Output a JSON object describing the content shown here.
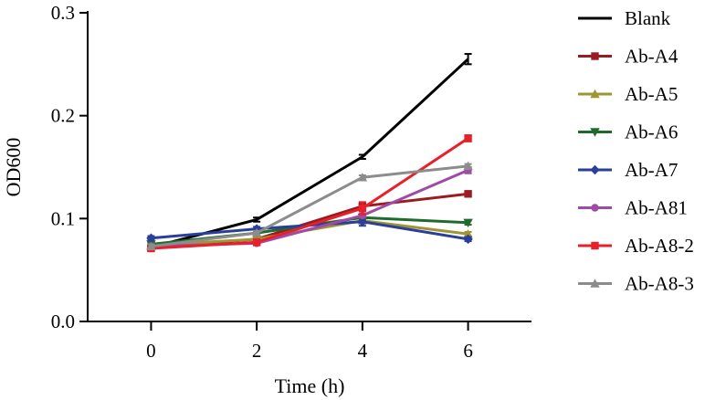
{
  "chart_data": {
    "type": "line",
    "title": "",
    "xlabel": "Time (h)",
    "ylabel": "OD600",
    "x": [
      0,
      2,
      4,
      6
    ],
    "xticks": [
      "0",
      "2",
      "4",
      "6"
    ],
    "yticks": [
      "0.0",
      "0.1",
      "0.2",
      "0.3"
    ],
    "xlim": [
      -1.2,
      7.2
    ],
    "ylim": [
      0,
      0.3
    ],
    "legend_position": "right",
    "series": [
      {
        "name": "Blank",
        "color": "#000000",
        "marker": "none",
        "values": [
          0.072,
          0.099,
          0.16,
          0.255
        ],
        "errors": [
          0.002,
          0.002,
          0.002,
          0.005
        ]
      },
      {
        "name": "Ab-A4",
        "color": "#9b1c20",
        "marker": "square",
        "values": [
          0.072,
          0.08,
          0.112,
          0.124
        ],
        "errors": [
          0.002,
          0.002,
          0.002,
          0.002
        ]
      },
      {
        "name": "Ab-A5",
        "color": "#9e9632",
        "marker": "triangle",
        "values": [
          0.074,
          0.08,
          0.098,
          0.085
        ],
        "errors": [
          0.002,
          0.002,
          0.002,
          0.002
        ]
      },
      {
        "name": "Ab-A6",
        "color": "#1f6b2d",
        "marker": "tri-down",
        "values": [
          0.075,
          0.086,
          0.101,
          0.096
        ],
        "errors": [
          0.002,
          0.002,
          0.002,
          0.002
        ]
      },
      {
        "name": "Ab-A7",
        "color": "#2b3f9a",
        "marker": "diamond",
        "values": [
          0.081,
          0.09,
          0.097,
          0.08
        ],
        "errors": [
          0.002,
          0.002,
          0.004,
          0.002
        ]
      },
      {
        "name": "Ab-A81",
        "color": "#a04aa8",
        "marker": "circle",
        "values": [
          0.073,
          0.076,
          0.103,
          0.147
        ],
        "errors": [
          0.002,
          0.002,
          0.002,
          0.003
        ]
      },
      {
        "name": "Ab-A8-2",
        "color": "#e8202a",
        "marker": "square",
        "values": [
          0.071,
          0.077,
          0.11,
          0.178
        ],
        "errors": [
          0.002,
          0.002,
          0.006,
          0.003
        ]
      },
      {
        "name": "Ab-A8-3",
        "color": "#8c8c8c",
        "marker": "triangle",
        "values": [
          0.073,
          0.086,
          0.14,
          0.151
        ],
        "errors": [
          0.002,
          0.002,
          0.002,
          0.002
        ]
      }
    ]
  }
}
